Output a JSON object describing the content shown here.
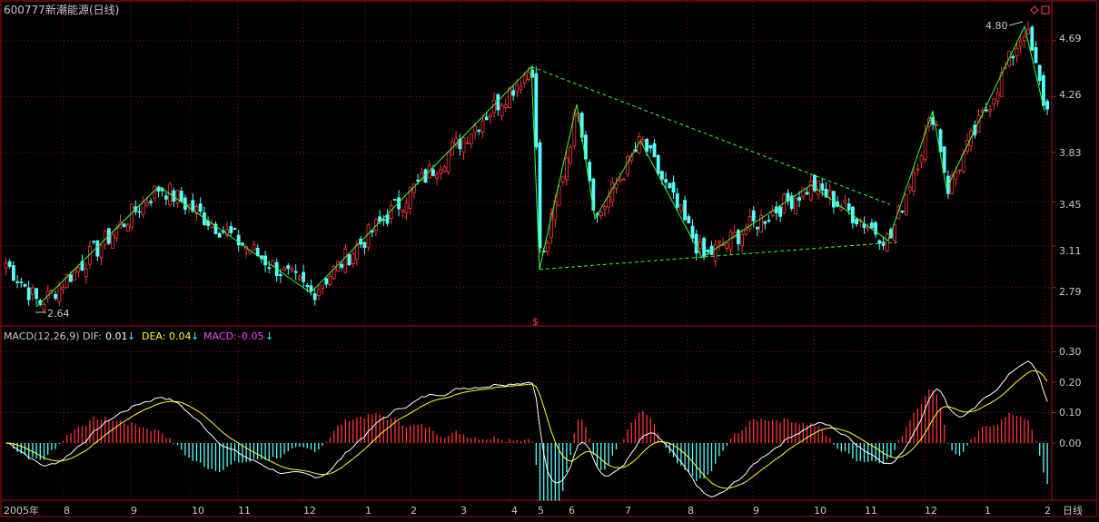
{
  "header": {
    "code": "600777",
    "name": "新潮能源(日线)"
  },
  "colors": {
    "up": "#ff3333",
    "down": "#54ffff",
    "frame": "#b01010",
    "grid": "#8a1010",
    "trend": "#33ff33",
    "dif": "#ffffff",
    "dea": "#ffff33",
    "macd_label": "#ff44ff",
    "arrow": "#33ffff",
    "text": "#c8c8c8"
  },
  "price_axis_labels": [
    "4.69",
    "4.26",
    "3.83",
    "3.45",
    "3.11",
    "2.79"
  ],
  "macd_axis_labels": [
    "0.30",
    "0.20",
    "0.10",
    "0.00"
  ],
  "date_labels": [
    "2005年",
    "8",
    "9",
    "10",
    "11",
    "12",
    "1",
    "2",
    "3",
    "4",
    "5",
    "6",
    "7",
    "8",
    "9",
    "10",
    "11",
    "12",
    "1",
    "2"
  ],
  "period_label": "日线",
  "markers": {
    "low_label": "2.64",
    "high_label": "4.80",
    "split_mark": "$"
  },
  "macd_legend": {
    "title": "MACD(12,26,9)",
    "dif_label": "DIF:",
    "dif_value": "0.01",
    "dea_label": "DEA:",
    "dea_value": "0.04",
    "macd_label": "MACD:",
    "macd_value": "-0.05",
    "trend_arrow": "↓"
  },
  "chart_data": [
    {
      "type": "candlestick",
      "ylim": [
        2.6,
        4.85
      ],
      "zigzag": [
        {
          "date": "2005-07",
          "value": 2.64
        },
        {
          "date": "2005-09",
          "value": 3.57
        },
        {
          "date": "2005-12",
          "value": 2.75
        },
        {
          "date": "2006-04",
          "value": 4.49
        },
        {
          "date": "2006-05",
          "value": 2.93
        },
        {
          "date": "2006-05",
          "value": 4.2
        },
        {
          "date": "2006-06",
          "value": 3.32
        },
        {
          "date": "2006-07",
          "value": 3.92
        },
        {
          "date": "2006-08",
          "value": 3.02
        },
        {
          "date": "2006-10",
          "value": 3.58
        },
        {
          "date": "2006-11",
          "value": 3.15
        },
        {
          "date": "2006-12",
          "value": 4.15
        },
        {
          "date": "2006-12",
          "value": 3.55
        },
        {
          "date": "2007-02",
          "value": 4.8
        },
        {
          "date": "2007-02",
          "value": 4.15
        }
      ],
      "annotations": [
        "2.64",
        "4.80"
      ]
    },
    {
      "type": "macd",
      "ylim": [
        -0.2,
        0.35
      ],
      "dif_last": 0.01,
      "dea_last": 0.04,
      "macd_last": -0.05
    }
  ]
}
